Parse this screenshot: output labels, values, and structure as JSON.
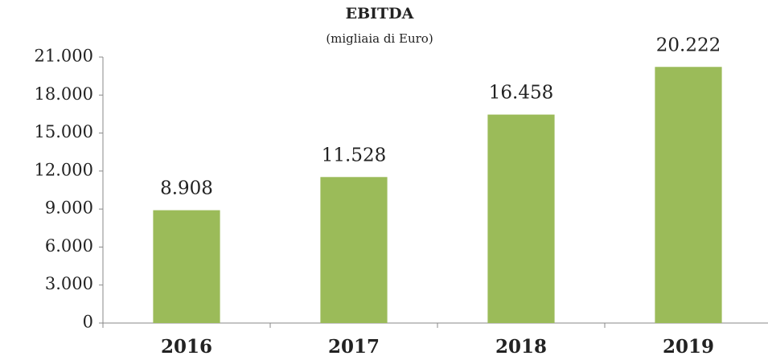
{
  "chart_data": {
    "type": "bar",
    "title": "EBITDA",
    "subtitle": "(migliaia di Euro)",
    "categories": [
      "2016",
      "2017",
      "2018",
      "2019"
    ],
    "values": [
      8908,
      11528,
      16458,
      20222
    ],
    "value_labels": [
      "8.908",
      "11.528",
      "16.458",
      "20.222"
    ],
    "color": "#9bbb59",
    "ylim": [
      0,
      21000
    ],
    "yticks": [
      0,
      {
        "value": 3000,
        "label": "3.000"
      },
      {
        "value": 6000,
        "label": "6.000"
      },
      {
        "value": 9000,
        "label": "9.000"
      },
      {
        "value": 12000,
        "label": "12.000"
      },
      {
        "value": 15000,
        "label": "15.000"
      },
      {
        "value": 18000,
        "label": "18.000"
      },
      {
        "value": 21000,
        "label": "21.000"
      }
    ],
    "grid": false
  }
}
